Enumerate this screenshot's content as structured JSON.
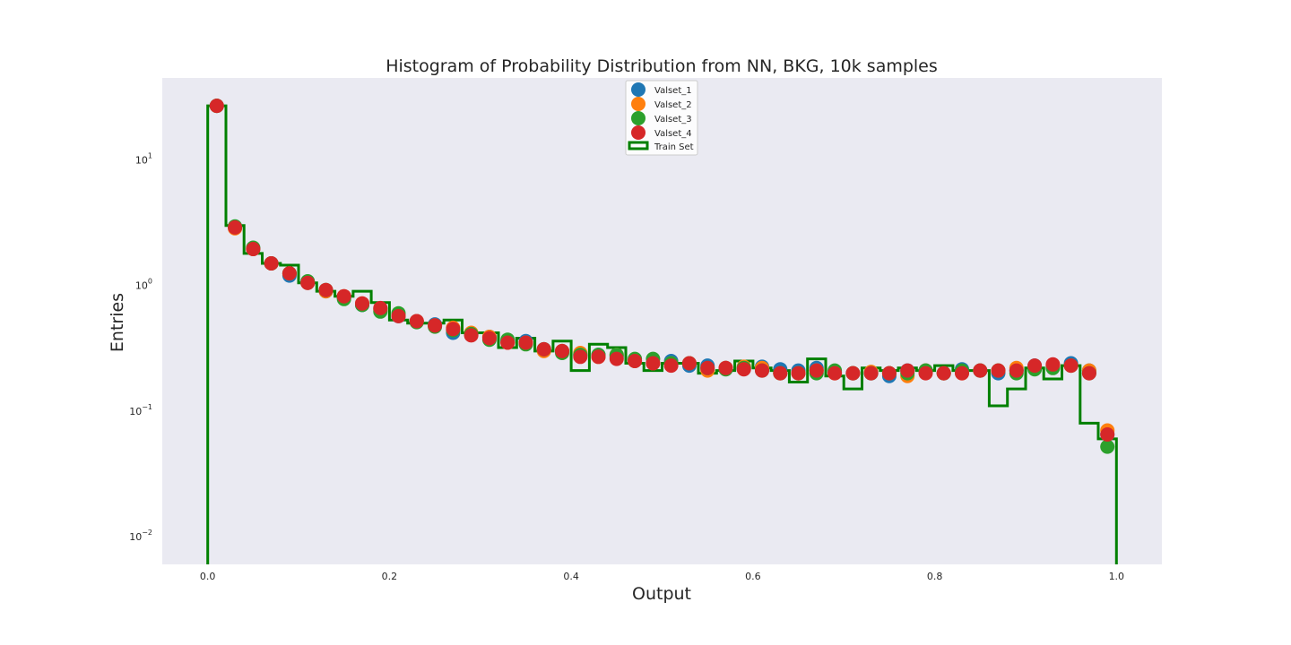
{
  "chart_data": {
    "type": "scatter",
    "title": "Histogram of Probability Distribution from NN, BKG, 10k samples",
    "xlabel": "Output",
    "ylabel": "Entries",
    "xlim": [
      -0.05,
      1.05
    ],
    "ylim": [
      0.006,
      45
    ],
    "yscale": "log",
    "grid": false,
    "legend_position": "top-center",
    "xticks": [
      {
        "value": 0.0,
        "label": "0.0"
      },
      {
        "value": 0.2,
        "label": "0.2"
      },
      {
        "value": 0.4,
        "label": "0.4"
      },
      {
        "value": 0.6,
        "label": "0.6"
      },
      {
        "value": 0.8,
        "label": "0.8"
      },
      {
        "value": 1.0,
        "label": "1.0"
      }
    ],
    "yticks": [
      {
        "value": 10,
        "base": "10",
        "exp": "1"
      },
      {
        "value": 1,
        "base": "10",
        "exp": "0"
      },
      {
        "value": 0.1,
        "base": "10",
        "exp": "−1"
      },
      {
        "value": 0.01,
        "base": "10",
        "exp": "−2"
      }
    ],
    "x": [
      0.01,
      0.03,
      0.05,
      0.07,
      0.09,
      0.11,
      0.13,
      0.15,
      0.17,
      0.19,
      0.21,
      0.23,
      0.25,
      0.27,
      0.29,
      0.31,
      0.33,
      0.35,
      0.37,
      0.39,
      0.41,
      0.43,
      0.45,
      0.47,
      0.49,
      0.51,
      0.53,
      0.55,
      0.57,
      0.59,
      0.61,
      0.63,
      0.65,
      0.67,
      0.69,
      0.71,
      0.73,
      0.75,
      0.77,
      0.79,
      0.81,
      0.83,
      0.85,
      0.87,
      0.89,
      0.91,
      0.93,
      0.95,
      0.97,
      0.99
    ],
    "series": [
      {
        "name": "Valset_1",
        "color": "#1f77b4",
        "values": [
          27,
          2.9,
          1.95,
          1.5,
          1.2,
          1.05,
          0.9,
          0.8,
          0.7,
          0.65,
          0.57,
          0.52,
          0.49,
          0.42,
          0.41,
          0.39,
          0.36,
          0.36,
          0.31,
          0.3,
          0.28,
          0.28,
          0.27,
          0.25,
          0.24,
          0.25,
          0.23,
          0.23,
          0.22,
          0.22,
          0.225,
          0.215,
          0.21,
          0.22,
          0.205,
          0.2,
          0.2,
          0.19,
          0.21,
          0.21,
          0.2,
          0.215,
          0.21,
          0.2,
          0.21,
          0.23,
          0.23,
          0.24,
          0.21,
          0.065
        ]
      },
      {
        "name": "Valset_2",
        "color": "#ff7f0e",
        "values": [
          27,
          2.85,
          1.95,
          1.5,
          1.25,
          1.05,
          0.9,
          0.82,
          0.72,
          0.64,
          0.58,
          0.52,
          0.48,
          0.46,
          0.42,
          0.39,
          0.35,
          0.35,
          0.3,
          0.3,
          0.29,
          0.27,
          0.28,
          0.25,
          0.24,
          0.24,
          0.24,
          0.21,
          0.22,
          0.225,
          0.22,
          0.2,
          0.2,
          0.21,
          0.2,
          0.2,
          0.205,
          0.2,
          0.19,
          0.21,
          0.2,
          0.2,
          0.21,
          0.21,
          0.22,
          0.22,
          0.23,
          0.23,
          0.21,
          0.07
        ]
      },
      {
        "name": "Valset_3",
        "color": "#2ca02c",
        "values": [
          27,
          2.95,
          2.0,
          1.5,
          1.25,
          1.08,
          0.92,
          0.78,
          0.7,
          0.62,
          0.6,
          0.51,
          0.47,
          0.44,
          0.41,
          0.37,
          0.37,
          0.34,
          0.31,
          0.29,
          0.28,
          0.28,
          0.28,
          0.26,
          0.26,
          0.24,
          0.24,
          0.22,
          0.215,
          0.22,
          0.21,
          0.2,
          0.2,
          0.2,
          0.21,
          0.2,
          0.2,
          0.2,
          0.2,
          0.21,
          0.2,
          0.21,
          0.21,
          0.21,
          0.2,
          0.215,
          0.22,
          0.23,
          0.2,
          0.052
        ]
      },
      {
        "name": "Valset_4",
        "color": "#d62728",
        "values": [
          27,
          2.9,
          1.95,
          1.5,
          1.25,
          1.05,
          0.92,
          0.82,
          0.72,
          0.66,
          0.57,
          0.52,
          0.48,
          0.45,
          0.4,
          0.38,
          0.35,
          0.35,
          0.31,
          0.3,
          0.27,
          0.27,
          0.26,
          0.25,
          0.24,
          0.23,
          0.24,
          0.22,
          0.22,
          0.215,
          0.21,
          0.2,
          0.2,
          0.21,
          0.2,
          0.2,
          0.2,
          0.2,
          0.21,
          0.2,
          0.2,
          0.2,
          0.21,
          0.21,
          0.21,
          0.23,
          0.235,
          0.23,
          0.2,
          0.065
        ]
      }
    ],
    "train_set": {
      "name": "Train Set",
      "color": "#008000",
      "bin_edges": [
        0.0,
        0.02,
        0.04,
        0.06,
        0.08,
        0.1,
        0.12,
        0.14,
        0.16,
        0.18,
        0.2,
        0.22,
        0.24,
        0.26,
        0.28,
        0.3,
        0.32,
        0.34,
        0.36,
        0.38,
        0.4,
        0.42,
        0.44,
        0.46,
        0.48,
        0.5,
        0.52,
        0.54,
        0.56,
        0.58,
        0.6,
        0.62,
        0.64,
        0.66,
        0.68,
        0.7,
        0.72,
        0.74,
        0.76,
        0.78,
        0.8,
        0.82,
        0.84,
        0.86,
        0.88,
        0.9,
        0.92,
        0.94,
        0.96,
        0.98,
        1.0
      ],
      "values": [
        27,
        3.0,
        1.8,
        1.5,
        1.45,
        1.05,
        0.9,
        0.82,
        0.9,
        0.73,
        0.53,
        0.5,
        0.5,
        0.53,
        0.42,
        0.42,
        0.32,
        0.38,
        0.3,
        0.36,
        0.21,
        0.34,
        0.32,
        0.24,
        0.21,
        0.24,
        0.24,
        0.2,
        0.21,
        0.25,
        0.22,
        0.21,
        0.17,
        0.26,
        0.19,
        0.15,
        0.22,
        0.21,
        0.22,
        0.21,
        0.23,
        0.21,
        0.21,
        0.11,
        0.15,
        0.22,
        0.18,
        0.23,
        0.08,
        0.06
      ]
    }
  }
}
